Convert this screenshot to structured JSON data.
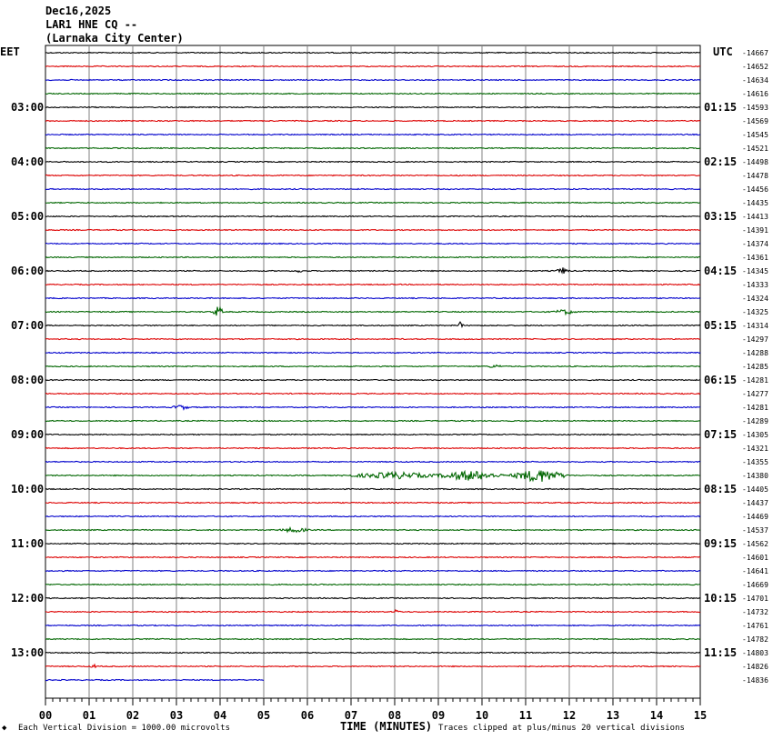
{
  "header": {
    "date": "Dec16,2025",
    "station": "LAR1 HNE CQ --",
    "location": "(Larnaka City Center)"
  },
  "left_zone": "EET",
  "right_zone": "UTC",
  "footer": {
    "scale_note": "Each Vertical Division = 1000.00 microvolts",
    "xlabel": "TIME (MINUTES)",
    "clip_note": "Traces clipped at plus/minus 20 vertical divisions"
  },
  "colors": {
    "cycle": [
      "#000000",
      "#dd0000",
      "#0000cc",
      "#006600"
    ],
    "grid": "#808080"
  },
  "chart_data": {
    "type": "line",
    "x_ticks": [
      "00",
      "01",
      "02",
      "03",
      "04",
      "05",
      "06",
      "07",
      "08",
      "09",
      "10",
      "11",
      "12",
      "13",
      "14",
      "15"
    ],
    "xlim": [
      0,
      15
    ],
    "left_hour_labels": [
      "03:00",
      "04:00",
      "05:00",
      "06:00",
      "07:00",
      "08:00",
      "09:00",
      "10:00",
      "11:00",
      "12:00",
      "13:00"
    ],
    "right_hour_labels": [
      "01:15",
      "02:15",
      "03:15",
      "04:15",
      "05:15",
      "06:15",
      "07:15",
      "08:15",
      "09:15",
      "10:15",
      "11:15"
    ],
    "trace_offsets": [
      "-14667",
      "-14652",
      "-14634",
      "-14616",
      "-14593",
      "-14569",
      "-14545",
      "-14521",
      "-14498",
      "-14478",
      "-14456",
      "-14435",
      "-14413",
      "-14391",
      "-14374",
      "-14361",
      "-14345",
      "-14333",
      "-14324",
      "-14325",
      "-14314",
      "-14297",
      "-14288",
      "-14285",
      "-14281",
      "-14277",
      "-14281",
      "-14289",
      "-14305",
      "-14321",
      "-14355",
      "-14380",
      "-14405",
      "-14437",
      "-14469",
      "-14537",
      "-14562",
      "-14601",
      "-14641",
      "-14669",
      "-14701",
      "-14732",
      "-14761",
      "-14782",
      "-14803",
      "-14826",
      "-14836"
    ],
    "last_trace_end_minute": 5.0,
    "events": [
      {
        "trace": 16,
        "minute": 5.8,
        "amp": 3,
        "dur": 0.1
      },
      {
        "trace": 16,
        "minute": 11.85,
        "amp": 4,
        "dur": 0.2
      },
      {
        "trace": 19,
        "minute": 3.95,
        "amp": 7,
        "dur": 0.15
      },
      {
        "trace": 19,
        "minute": 11.9,
        "amp": 3,
        "dur": 0.4
      },
      {
        "trace": 20,
        "minute": 9.5,
        "amp": 4,
        "dur": 0.1
      },
      {
        "trace": 23,
        "minute": 10.3,
        "amp": 2,
        "dur": 0.3
      },
      {
        "trace": 26,
        "minute": 3.1,
        "amp": 3,
        "dur": 0.3
      },
      {
        "trace": 31,
        "minute": 8.0,
        "amp": 4,
        "dur": 1.5
      },
      {
        "trace": 31,
        "minute": 9.7,
        "amp": 6,
        "dur": 1.0
      },
      {
        "trace": 31,
        "minute": 11.3,
        "amp": 8,
        "dur": 0.8
      },
      {
        "trace": 35,
        "minute": 5.7,
        "amp": 3,
        "dur": 0.5
      },
      {
        "trace": 41,
        "minute": 8.05,
        "amp": 3,
        "dur": 0.1
      },
      {
        "trace": 45,
        "minute": 1.1,
        "amp": 3,
        "dur": 0.1
      }
    ]
  }
}
